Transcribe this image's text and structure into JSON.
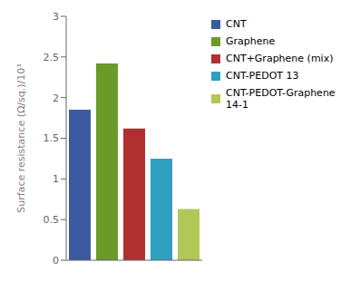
{
  "chart_data": {
    "type": "bar",
    "categories": [
      "CNT",
      "Graphene",
      "CNT+Graphene (mix)",
      "CNT-PEDOT 13",
      "CNT-PEDOT-Graphene 14-1"
    ],
    "values": [
      1.85,
      2.42,
      1.62,
      1.25,
      0.63
    ],
    "colors": [
      "#3b5aa0",
      "#6b9a28",
      "#b03030",
      "#30a0c0",
      "#b0c858"
    ],
    "ylabel": "Surface resistance (Ω/sq.)/10³",
    "ylim": [
      0,
      3
    ],
    "yticks": [
      0,
      0.5,
      1,
      1.5,
      2,
      2.5,
      3
    ],
    "grid": false,
    "legend": "upper right",
    "tick_labels": "y"
  }
}
